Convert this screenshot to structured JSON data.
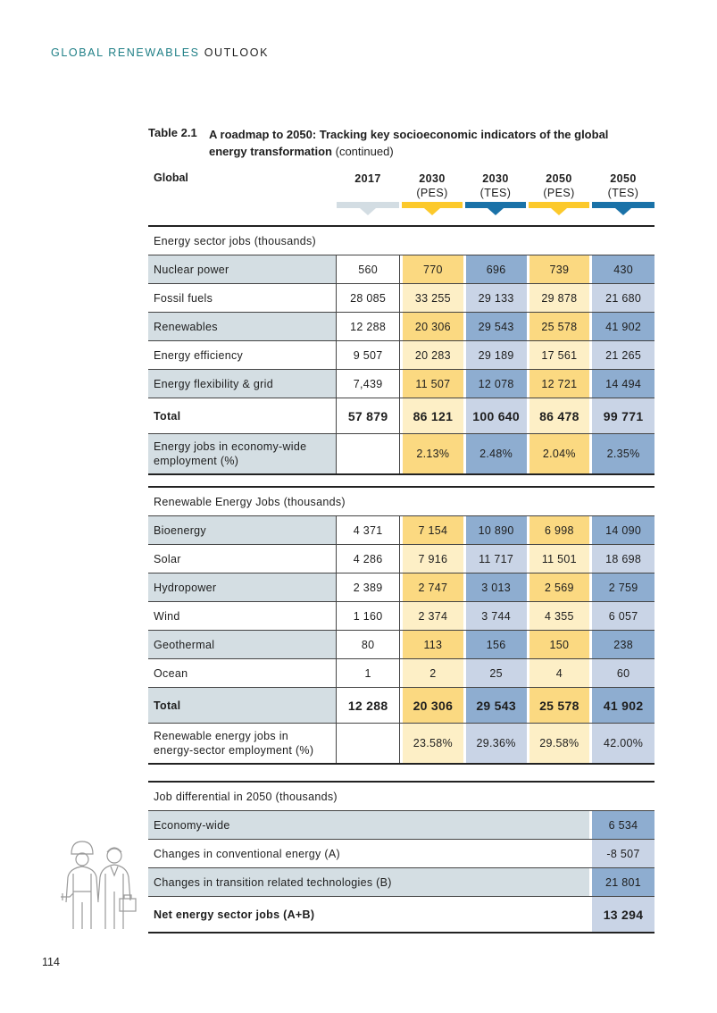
{
  "header": {
    "title_highlight": "GLOBAL RENEWABLES",
    "title_rest": "OUTLOOK"
  },
  "caption": {
    "label": "Table 2.1",
    "title": "A roadmap to 2050: Tracking key socioeconomic indicators of the global energy transformation",
    "note": "(continued)"
  },
  "table": {
    "corner": "Global",
    "columns": [
      {
        "year": "2017"
      },
      {
        "year": "2030",
        "scenario": "(PES)"
      },
      {
        "year": "2030",
        "scenario": "(TES)"
      },
      {
        "year": "2050",
        "scenario": "(PES)"
      },
      {
        "year": "2050",
        "scenario": "(TES)"
      }
    ],
    "sections": [
      {
        "title": "Energy sector jobs (thousands)",
        "rows": [
          {
            "label": "Nuclear power",
            "values": [
              "560",
              "770",
              "696",
              "739",
              "430"
            ]
          },
          {
            "label": "Fossil fuels",
            "values": [
              "28 085",
              "33 255",
              "29 133",
              "29 878",
              "21 680"
            ]
          },
          {
            "label": "Renewables",
            "values": [
              "12 288",
              "20 306",
              "29 543",
              "25 578",
              "41 902"
            ]
          },
          {
            "label": "Energy efficiency",
            "values": [
              "9 507",
              "20 283",
              "29 189",
              "17 561",
              "21 265"
            ]
          },
          {
            "label": "Energy flexibility & grid",
            "values": [
              "7,439",
              "11 507",
              "12 078",
              "12 721",
              "14 494"
            ]
          },
          {
            "label": "Total",
            "bold": true,
            "values": [
              "57 879",
              "86 121",
              "100 640",
              "86 478",
              "99 771"
            ]
          },
          {
            "label": "Energy jobs in economy-wide employment (%)",
            "values": [
              null,
              "2.13%",
              "2.48%",
              "2.04%",
              "2.35%"
            ]
          }
        ]
      },
      {
        "title": "Renewable Energy Jobs (thousands)",
        "rows": [
          {
            "label": "Bioenergy",
            "values": [
              "4 371",
              "7 154",
              "10 890",
              "6 998",
              "14 090"
            ]
          },
          {
            "label": "Solar",
            "values": [
              "4 286",
              "7 916",
              "11 717",
              "11 501",
              "18 698"
            ]
          },
          {
            "label": "Hydropower",
            "values": [
              "2 389",
              "2 747",
              "3 013",
              "2 569",
              "2 759"
            ]
          },
          {
            "label": "Wind",
            "values": [
              "1 160",
              "2 374",
              "3 744",
              "4 355",
              "6 057"
            ]
          },
          {
            "label": "Geothermal",
            "values": [
              "80",
              "113",
              "156",
              "150",
              "238"
            ]
          },
          {
            "label": "Ocean",
            "values": [
              "1",
              "2",
              "25",
              "4",
              "60"
            ]
          },
          {
            "label": "Total",
            "bold": true,
            "values": [
              "12 288",
              "20 306",
              "29 543",
              "25 578",
              "41 902"
            ]
          },
          {
            "label": "Renewable energy jobs in energy-sector employment (%)",
            "values": [
              null,
              "23.58%",
              "29.36%",
              "29.58%",
              "42.00%"
            ]
          }
        ]
      },
      {
        "title": "Job differential in 2050 (thousands)",
        "rows": [
          {
            "label": "Economy-wide",
            "values": [
              "6 534"
            ]
          },
          {
            "label": "Changes in conventional energy (A)",
            "values": [
              "-8 507"
            ]
          },
          {
            "label": "Changes in transition related technologies (B)",
            "values": [
              "21 801"
            ]
          },
          {
            "label": "Net energy sector jobs (A+B)",
            "bold": true,
            "values": [
              "13 294"
            ]
          }
        ]
      }
    ]
  },
  "page_number": "114"
}
